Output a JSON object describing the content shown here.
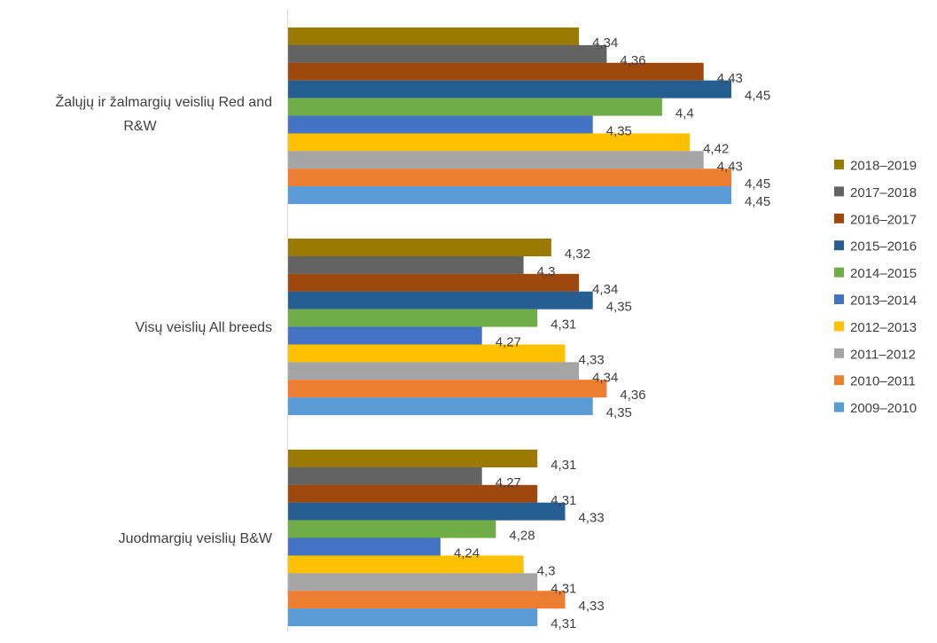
{
  "chart_data": {
    "type": "bar",
    "orientation": "horizontal",
    "categories": [
      "Žalųjų ir žalmargių veislių Red and R&W",
      "Visų veislių All breeds",
      "Juodmargių veislių B&W"
    ],
    "series": [
      {
        "name": "2018–2019",
        "color": "#9A7A00",
        "values": [
          4.34,
          4.32,
          4.31
        ],
        "labels": [
          "4,34",
          "4,32",
          "4,31"
        ]
      },
      {
        "name": "2017–2018",
        "color": "#636363",
        "values": [
          4.36,
          4.3,
          4.27
        ],
        "labels": [
          "4,36",
          "4,3",
          "4,27"
        ]
      },
      {
        "name": "2016–2017",
        "color": "#9E480E",
        "values": [
          4.43,
          4.34,
          4.31
        ],
        "labels": [
          "4,43",
          "4,34",
          "4,31"
        ]
      },
      {
        "name": "2015–2016",
        "color": "#255E91",
        "values": [
          4.45,
          4.35,
          4.33
        ],
        "labels": [
          "4,45",
          "4,35",
          "4,33"
        ]
      },
      {
        "name": "2014–2015",
        "color": "#70AD47",
        "values": [
          4.4,
          4.31,
          4.28
        ],
        "labels": [
          "4,4",
          "4,31",
          "4,28"
        ]
      },
      {
        "name": "2013–2014",
        "color": "#4472C4",
        "values": [
          4.35,
          4.27,
          4.24
        ],
        "labels": [
          "4,35",
          "4,27",
          "4,24"
        ]
      },
      {
        "name": "2012–2013",
        "color": "#FFC000",
        "values": [
          4.42,
          4.33,
          4.3
        ],
        "labels": [
          "4,42",
          "4,33",
          "4,3"
        ]
      },
      {
        "name": "2011–2012",
        "color": "#A5A5A5",
        "values": [
          4.43,
          4.34,
          4.31
        ],
        "labels": [
          "4,43",
          "4,34",
          "4,31"
        ]
      },
      {
        "name": "2010–2011",
        "color": "#ED7D31",
        "values": [
          4.45,
          4.36,
          4.33
        ],
        "labels": [
          "4,45",
          "4,36",
          "4,33"
        ]
      },
      {
        "name": "2009–2010",
        "color": "#5B9BD5",
        "values": [
          4.45,
          4.35,
          4.31
        ],
        "labels": [
          "4,45",
          "4,35",
          "4,31"
        ]
      }
    ],
    "xlim": [
      4.13,
      4.48
    ],
    "grid": false,
    "legend": "right",
    "title": "",
    "xlabel": "",
    "ylabel": ""
  }
}
